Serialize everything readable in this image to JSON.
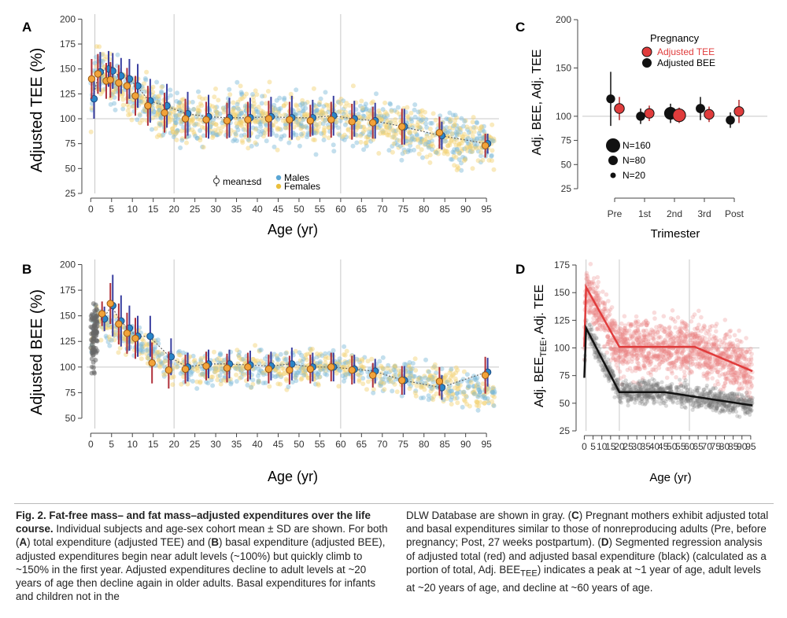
{
  "chart_data": [
    {
      "panel": "A",
      "type": "scatter",
      "ylabel": "Adjusted TEE (%)",
      "xlabel": "Age (yr)",
      "xticks": [
        0,
        5,
        10,
        15,
        20,
        25,
        30,
        35,
        40,
        45,
        50,
        55,
        60,
        65,
        70,
        75,
        80,
        85,
        90,
        95
      ],
      "yticks": [
        25,
        50,
        75,
        100,
        125,
        150,
        175,
        200
      ],
      "xlim": [
        -1,
        98
      ],
      "ylim": [
        25,
        205
      ],
      "reference_lines": {
        "x": [
          1,
          20,
          60
        ],
        "y": [
          100
        ]
      },
      "legend": {
        "mean_label": "mean±sd",
        "males_label": "Males",
        "females_label": "Females",
        "placement": "bottom-center"
      },
      "colors": {
        "males": "#74b6d6",
        "females": "#f0cf6a",
        "male_mean": "#2a85c8",
        "female_mean": "#f2a33a",
        "male_sd": "#3a3fa0",
        "female_sd": "#b0303a"
      },
      "male_means": [
        [
          0.5,
          120,
          20
        ],
        [
          2,
          147,
          20
        ],
        [
          4,
          150,
          18
        ],
        [
          5,
          148,
          18
        ],
        [
          7,
          143,
          18
        ],
        [
          9,
          140,
          20
        ],
        [
          11,
          133,
          22
        ],
        [
          14,
          118,
          22
        ],
        [
          18,
          113,
          22
        ],
        [
          23,
          105,
          22
        ],
        [
          28,
          102,
          22
        ],
        [
          33,
          101,
          20
        ],
        [
          38,
          101,
          20
        ],
        [
          43,
          102,
          20
        ],
        [
          48,
          101,
          22
        ],
        [
          53,
          101,
          18
        ],
        [
          58,
          103,
          20
        ],
        [
          63,
          100,
          18
        ],
        [
          68,
          98,
          18
        ],
        [
          75,
          92,
          18
        ],
        [
          84,
          83,
          14
        ],
        [
          95,
          75,
          10
        ]
      ],
      "female_means": [
        [
          0.5,
          140,
          20
        ],
        [
          2,
          145,
          20
        ],
        [
          4,
          138,
          18
        ],
        [
          5,
          139,
          18
        ],
        [
          7,
          136,
          18
        ],
        [
          9,
          133,
          18
        ],
        [
          11,
          123,
          20
        ],
        [
          14,
          113,
          20
        ],
        [
          18,
          106,
          20
        ],
        [
          23,
          100,
          20
        ],
        [
          28,
          99,
          18
        ],
        [
          33,
          98,
          18
        ],
        [
          38,
          99,
          18
        ],
        [
          43,
          100,
          18
        ],
        [
          48,
          99,
          18
        ],
        [
          53,
          98,
          16
        ],
        [
          58,
          99,
          18
        ],
        [
          63,
          97,
          18
        ],
        [
          68,
          96,
          16
        ],
        [
          75,
          92,
          18
        ],
        [
          84,
          86,
          16
        ],
        [
          95,
          73,
          12
        ]
      ]
    },
    {
      "panel": "B",
      "type": "scatter",
      "ylabel": "Adjusted BEE (%)",
      "xlabel": "Age (yr)",
      "xticks": [
        0,
        5,
        10,
        15,
        20,
        25,
        30,
        35,
        40,
        45,
        50,
        55,
        60,
        65,
        70,
        75,
        80,
        85,
        90,
        95
      ],
      "yticks": [
        50,
        75,
        100,
        125,
        150,
        175,
        200
      ],
      "xlim": [
        -1,
        98
      ],
      "ylim": [
        40,
        205
      ],
      "reference_lines": {
        "x": [
          1,
          20,
          60
        ],
        "y": [
          100
        ]
      },
      "male_means": [
        [
          3,
          147,
          12
        ],
        [
          5,
          160,
          30
        ],
        [
          7,
          145,
          25
        ],
        [
          9,
          138,
          22
        ],
        [
          11,
          130,
          20
        ],
        [
          14,
          130,
          20
        ],
        [
          19,
          110,
          18
        ],
        [
          23,
          100,
          14
        ],
        [
          28,
          103,
          14
        ],
        [
          33,
          103,
          14
        ],
        [
          38,
          102,
          14
        ],
        [
          43,
          101,
          14
        ],
        [
          48,
          103,
          16
        ],
        [
          53,
          100,
          14
        ],
        [
          58,
          100,
          14
        ],
        [
          63,
          98,
          14
        ],
        [
          68,
          96,
          12
        ],
        [
          75,
          87,
          14
        ],
        [
          84,
          80,
          12
        ],
        [
          95,
          95,
          14
        ]
      ],
      "female_means": [
        [
          3,
          152,
          12
        ],
        [
          5,
          162,
          20
        ],
        [
          7,
          142,
          20
        ],
        [
          9,
          133,
          20
        ],
        [
          11,
          128,
          20
        ],
        [
          15,
          104,
          20
        ],
        [
          19,
          97,
          18
        ],
        [
          23,
          98,
          14
        ],
        [
          28,
          101,
          14
        ],
        [
          33,
          99,
          14
        ],
        [
          38,
          100,
          14
        ],
        [
          43,
          98,
          14
        ],
        [
          48,
          97,
          14
        ],
        [
          53,
          98,
          14
        ],
        [
          58,
          100,
          14
        ],
        [
          63,
          97,
          14
        ],
        [
          68,
          92,
          12
        ],
        [
          75,
          87,
          14
        ],
        [
          84,
          86,
          14
        ],
        [
          95,
          92,
          18
        ]
      ]
    },
    {
      "panel": "C",
      "type": "scatter",
      "ylabel": "Adj. BEE, Adj. TEE",
      "xlabel": "Trimester",
      "categories": [
        "Pre",
        "1st",
        "2nd",
        "3rd",
        "Post"
      ],
      "yticks": [
        25,
        50,
        75,
        100,
        150,
        200
      ],
      "ylim": [
        25,
        200
      ],
      "reference_lines": {
        "y": [
          100
        ]
      },
      "legend": {
        "title": "Pregnancy",
        "tee_label": "Adjusted TEE",
        "bee_label": "Adjusted BEE",
        "placement": "top-right"
      },
      "size_legend": [
        "N=160",
        "N=80",
        "N=20"
      ],
      "colors": {
        "tee": "#e03c3c",
        "bee": "#111111"
      },
      "series": [
        {
          "name": "Adjusted BEE",
          "points": [
            [
              0,
              118,
              28,
              16
            ],
            [
              1,
              100,
              8,
              18
            ],
            [
              2,
              103,
              10,
              60
            ],
            [
              3,
              108,
              12,
              20
            ],
            [
              4,
              96,
              8,
              18
            ]
          ]
        },
        {
          "name": "Adjusted TEE",
          "points": [
            [
              0,
              108,
              12,
              24
            ],
            [
              1,
              103,
              8,
              22
            ],
            [
              2,
              101,
              8,
              60
            ],
            [
              3,
              102,
              8,
              24
            ],
            [
              4,
              105,
              12,
              22
            ]
          ]
        }
      ]
    },
    {
      "panel": "D",
      "type": "line",
      "ylabel_main": "Adj. BEE",
      "ylabel_sub": "TEE",
      "ylabel_rest": ", Adj. TEE",
      "xlabel": "Age (yr)",
      "xticks": [
        0,
        5,
        10,
        15,
        20,
        25,
        30,
        35,
        40,
        45,
        50,
        55,
        60,
        65,
        70,
        75,
        80,
        85,
        90,
        95
      ],
      "yticks": [
        25,
        50,
        75,
        100,
        125,
        150,
        175
      ],
      "xlim": [
        -2,
        100
      ],
      "ylim": [
        25,
        180
      ],
      "reference_lines": {
        "x": [
          1,
          20,
          60
        ],
        "y": [
          100
        ]
      },
      "colors": {
        "tee": "#e03c3c",
        "bee": "#111111"
      },
      "series": [
        {
          "name": "Adjusted TEE",
          "x": [
            0,
            1,
            20,
            63,
            96
          ],
          "y": [
            101,
            155,
            101,
            101,
            79
          ]
        },
        {
          "name": "Adj. BEE TEE",
          "x": [
            0,
            1,
            20,
            46,
            96
          ],
          "y": [
            73,
            118,
            60,
            60,
            48
          ]
        }
      ]
    }
  ],
  "panel_labels": {
    "a": "A",
    "b": "B",
    "c": "C",
    "d": "D"
  },
  "caption": {
    "title": "Fig. 2. Fat-free mass– and fat mass–adjusted expenditures over the life course.",
    "p1": " Individual subjects and age-sex cohort mean ± SD are shown. For both (",
    "a": "A",
    "p2": ") total expenditure (adjusted TEE) and (",
    "b": "B",
    "p3": ") basal expenditure (adjusted BEE), adjusted expenditures begin near adult levels (~100%) but quickly climb to ~150% in the first year. Adjusted expenditures decline to adult levels at ~20 years of age then decline again in older adults. Basal expenditures for infants and children not in the ",
    "p4": "DLW Database are shown in gray. (",
    "c": "C",
    "p5": ") Pregnant mothers exhibit adjusted total and basal expenditures similar to those of nonreproducing adults (Pre, before pregnancy; Post, 27 weeks postpartum). (",
    "d": "D",
    "p6": ") Segmented regression analysis of adjusted total (red) and adjusted basal expenditure (black) (calculated as a portion of total, Adj. BEE",
    "sub": "TEE",
    "p7": ") indicates a peak at ~1 year of age, adult levels at ~20 years of age, and decline at ~60 years of age."
  }
}
